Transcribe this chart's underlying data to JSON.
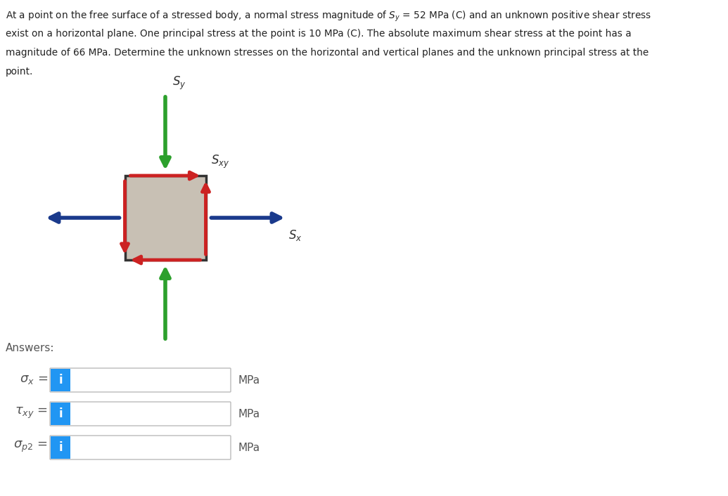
{
  "green_color": "#2ca02c",
  "red_color": "#cc2222",
  "blue_color": "#1a3a8c",
  "box_color": "#c8c0b4",
  "box_edge_color": "#333333",
  "text_color": "#555555",
  "input_border_color": "#bbbbbb",
  "i_button_color": "#2196F3",
  "background_color": "#ffffff",
  "answers_label": "Answers:",
  "units": [
    "MPa",
    "MPa",
    "MPa"
  ]
}
